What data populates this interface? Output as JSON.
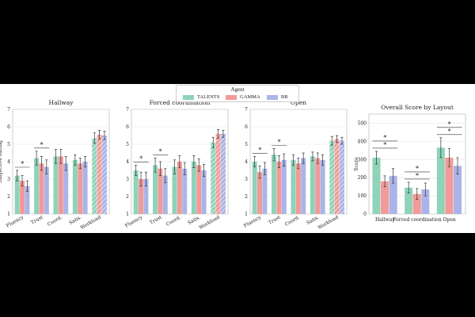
{
  "colors": {
    "TALENTS": "#8fd3b8",
    "GAMMA": "#f19a98",
    "BR": "#aab4e6"
  },
  "legend": {
    "title": "Agent",
    "items": [
      "TALENTS",
      "GAMMA",
      "BR"
    ]
  },
  "chart_data": [
    {
      "type": "bar",
      "title": "Hallway",
      "ylabel": "Subjective Rating",
      "ylim": [
        1,
        7
      ],
      "yticks": [
        1,
        2,
        3,
        4,
        5,
        6,
        7
      ],
      "categories": [
        "Fluency",
        "Trust",
        "Coord.",
        "Satis.",
        "Workload"
      ],
      "series": [
        {
          "name": "TALENTS",
          "values": [
            3.2,
            4.2,
            4.3,
            4.1,
            5.35
          ],
          "errors": [
            0.3,
            0.4,
            0.4,
            0.3,
            0.3
          ]
        },
        {
          "name": "GAMMA",
          "values": [
            2.9,
            3.9,
            4.3,
            3.9,
            5.55
          ],
          "errors": [
            0.3,
            0.4,
            0.4,
            0.3,
            0.25
          ]
        },
        {
          "name": "BR",
          "values": [
            2.6,
            3.7,
            3.9,
            4.0,
            5.5
          ],
          "errors": [
            0.3,
            0.4,
            0.4,
            0.3,
            0.25
          ]
        }
      ],
      "significance": [
        {
          "category": 0,
          "label": "*"
        },
        {
          "category": 1,
          "label": "*"
        }
      ]
    },
    {
      "type": "bar",
      "title": "Forced coordination",
      "ylim": [
        1,
        7
      ],
      "yticks": [
        1,
        2,
        3,
        4,
        5,
        6,
        7
      ],
      "categories": [
        "Fluency",
        "Trust",
        "Coord.",
        "Satis.",
        "Workload"
      ],
      "series": [
        {
          "name": "TALENTS",
          "values": [
            3.5,
            3.8,
            3.7,
            4.0,
            5.1
          ],
          "errors": [
            0.3,
            0.4,
            0.4,
            0.35,
            0.3
          ]
        },
        {
          "name": "GAMMA",
          "values": [
            3.0,
            3.6,
            4.0,
            3.8,
            5.6
          ],
          "errors": [
            0.4,
            0.4,
            0.35,
            0.35,
            0.25
          ]
        },
        {
          "name": "BR",
          "values": [
            3.0,
            3.2,
            3.6,
            3.5,
            5.6
          ],
          "errors": [
            0.4,
            0.4,
            0.35,
            0.35,
            0.2
          ]
        }
      ],
      "significance": [
        {
          "category": 0,
          "label": "*"
        },
        {
          "category": 1,
          "label": "*"
        }
      ]
    },
    {
      "type": "bar",
      "title": "Open",
      "ylim": [
        1,
        7
      ],
      "yticks": [
        1,
        2,
        3,
        4,
        5,
        6,
        7
      ],
      "categories": [
        "Fluency",
        "Trust",
        "Coord.",
        "Satis.",
        "Workload"
      ],
      "series": [
        {
          "name": "TALENTS",
          "values": [
            4.0,
            4.4,
            4.1,
            4.3,
            5.2
          ],
          "errors": [
            0.3,
            0.35,
            0.3,
            0.25,
            0.25
          ]
        },
        {
          "name": "GAMMA",
          "values": [
            3.4,
            4.0,
            3.9,
            4.2,
            5.3
          ],
          "errors": [
            0.35,
            0.35,
            0.3,
            0.3,
            0.2
          ]
        },
        {
          "name": "BR",
          "values": [
            3.6,
            4.1,
            4.2,
            4.1,
            5.2
          ],
          "errors": [
            0.35,
            0.35,
            0.3,
            0.3,
            0.2
          ]
        }
      ],
      "significance": [
        {
          "category": 0,
          "label": "*"
        },
        {
          "category": 1,
          "label": "*"
        }
      ]
    },
    {
      "type": "bar",
      "title": "Overall Score by Layout",
      "ylabel": "Score",
      "ylim": [
        0,
        550
      ],
      "yticks": [
        0,
        100,
        200,
        300,
        400,
        500
      ],
      "categories": [
        "Hallway",
        "Forced coordination",
        "Open"
      ],
      "series": [
        {
          "name": "TALENTS",
          "values": [
            310,
            145,
            365
          ],
          "errors": [
            35,
            30,
            55
          ]
        },
        {
          "name": "GAMMA",
          "values": [
            180,
            110,
            310
          ],
          "errors": [
            30,
            30,
            50
          ]
        },
        {
          "name": "BR",
          "values": [
            210,
            135,
            265
          ],
          "errors": [
            40,
            35,
            45
          ]
        }
      ],
      "significance": [
        {
          "category": 0,
          "label": "*"
        },
        {
          "category": 0,
          "label": "*"
        },
        {
          "category": 1,
          "label": "*"
        },
        {
          "category": 1,
          "label": "*"
        },
        {
          "category": 2,
          "label": "*"
        },
        {
          "category": 2,
          "label": "*"
        }
      ]
    }
  ]
}
